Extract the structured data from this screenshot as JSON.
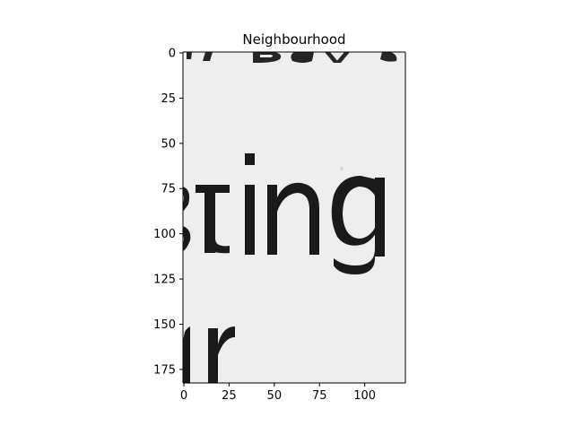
{
  "chart_data": {
    "type": "image",
    "title": "Neighbourhood",
    "xlabel": "",
    "ylabel": "",
    "xlim": [
      -0.5,
      122.5
    ],
    "ylim": [
      182.5,
      -0.5
    ],
    "x_ticks": [
      0,
      25,
      50,
      75,
      100
    ],
    "y_ticks": [
      0,
      25,
      50,
      75,
      100,
      125,
      150,
      175
    ],
    "grid": false,
    "colormap": "gray",
    "image_content": {
      "text_fragments": [
        {
          "text": "sting",
          "x_range": [
            0,
            112
          ],
          "y_range": [
            56,
            122
          ]
        },
        {
          "text": "r",
          "x_range": [
            5,
            28
          ],
          "y_range": [
            152,
            182
          ]
        }
      ]
    },
    "colors": {
      "background": "#f0f0f0",
      "ink": "#111111",
      "axis": "#000000"
    }
  }
}
